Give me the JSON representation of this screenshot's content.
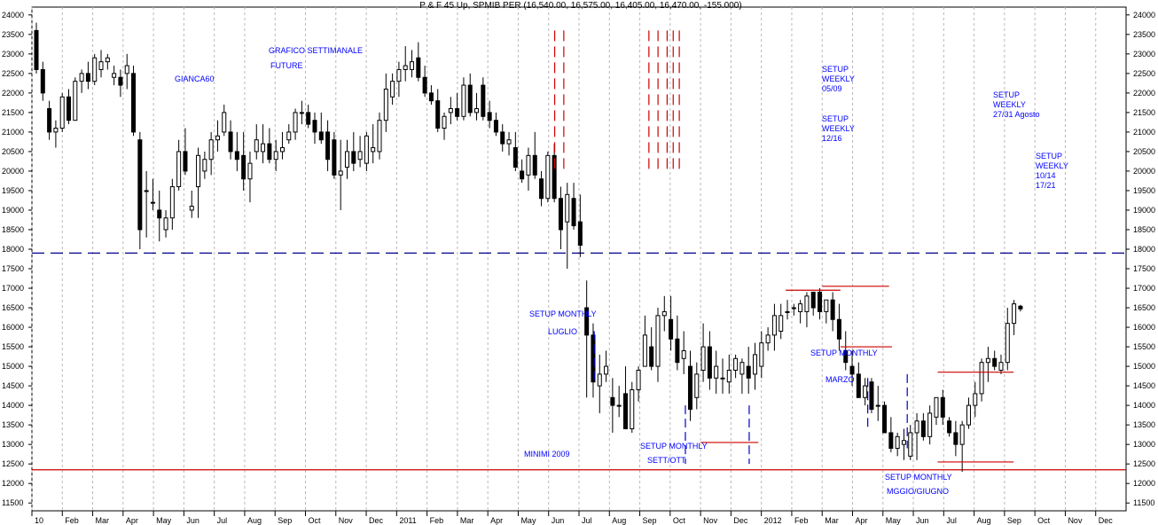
{
  "chart_data": {
    "type": "candlestick",
    "title": "P & F 45 Up, SPMIB PER (16,540.00, 16,575.00, 16,405.00, 16,470.00, -155.000)",
    "ylim": [
      11300,
      24200
    ],
    "yticks": [
      11500,
      12000,
      12500,
      13000,
      13500,
      14000,
      14500,
      15000,
      15500,
      16000,
      16500,
      17000,
      17500,
      18000,
      18500,
      19000,
      19500,
      20000,
      20500,
      21000,
      21500,
      22000,
      22500,
      23000,
      23500,
      24000
    ],
    "xticks": [
      "10",
      "Feb",
      "Mar",
      "Apr",
      "May",
      "Jun",
      "Jul",
      "Aug",
      "Sep",
      "Oct",
      "Nov",
      "Dec",
      "2011",
      "Feb",
      "Mar",
      "Apr",
      "May",
      "Jun",
      "Jul",
      "Aug",
      "Sep",
      "Oct",
      "Nov",
      "Dec",
      "2012",
      "Feb",
      "Mar",
      "Apr",
      "May",
      "Jun",
      "Jul",
      "Aug",
      "Sep",
      "Oct",
      "Nov",
      "Dec"
    ],
    "horizontal_levels": [
      {
        "value": 17900,
        "style": "dashed",
        "color": "#00008b"
      },
      {
        "value": 12350,
        "style": "solid",
        "color": "#cc0000"
      }
    ],
    "candles": [
      [
        23600,
        23800,
        22500,
        22600
      ],
      [
        22600,
        22800,
        21800,
        22000
      ],
      [
        21600,
        21800,
        20800,
        21000
      ],
      [
        21000,
        21300,
        20600,
        21100
      ],
      [
        21100,
        22000,
        21000,
        21900
      ],
      [
        21900,
        22100,
        21200,
        21300
      ],
      [
        21300,
        22400,
        21300,
        22300
      ],
      [
        22300,
        22600,
        22000,
        22500
      ],
      [
        22500,
        22800,
        22100,
        22300
      ],
      [
        22300,
        23000,
        22200,
        22900
      ],
      [
        22600,
        23100,
        22400,
        22800
      ],
      [
        22800,
        23000,
        22600,
        22900
      ],
      [
        22400,
        22700,
        22200,
        22500
      ],
      [
        22400,
        22600,
        21900,
        22200
      ],
      [
        22500,
        23000,
        22100,
        22700
      ],
      [
        22500,
        22700,
        20900,
        21000
      ],
      [
        20800,
        21000,
        18000,
        18500
      ],
      [
        19500,
        20000,
        18300,
        19500
      ],
      [
        19200,
        19800,
        19000,
        19200
      ],
      [
        19000,
        19500,
        18200,
        18800
      ],
      [
        18500,
        19000,
        18300,
        18800
      ],
      [
        18800,
        19800,
        18500,
        19600
      ],
      [
        19600,
        20800,
        19500,
        20500
      ],
      [
        20500,
        21100,
        19900,
        20000
      ],
      [
        19000,
        19500,
        18800,
        19100
      ],
      [
        19600,
        20600,
        18800,
        20400
      ],
      [
        20000,
        20500,
        19800,
        20300
      ],
      [
        20300,
        21000,
        19900,
        20800
      ],
      [
        20800,
        21300,
        20500,
        20900
      ],
      [
        21000,
        21700,
        20900,
        21500
      ],
      [
        21000,
        21300,
        20300,
        20500
      ],
      [
        20500,
        21000,
        20000,
        20300
      ],
      [
        20400,
        21000,
        19500,
        19800
      ],
      [
        19800,
        20500,
        19200,
        20200
      ],
      [
        20500,
        21200,
        20300,
        20800
      ],
      [
        20500,
        21200,
        20200,
        20700
      ],
      [
        20700,
        21100,
        20200,
        20300
      ],
      [
        20300,
        20800,
        20000,
        20500
      ],
      [
        20500,
        21000,
        20300,
        20600
      ],
      [
        20800,
        21200,
        20700,
        21000
      ],
      [
        21000,
        21600,
        20800,
        21500
      ],
      [
        21500,
        21800,
        21200,
        21500
      ],
      [
        21500,
        21700,
        21100,
        21200
      ],
      [
        21300,
        21500,
        20700,
        21000
      ],
      [
        21000,
        21500,
        20700,
        20800
      ],
      [
        21000,
        21300,
        20000,
        20300
      ],
      [
        20800,
        21000,
        19800,
        19900
      ],
      [
        19900,
        20800,
        19000,
        20000
      ],
      [
        20100,
        20800,
        19800,
        20500
      ],
      [
        20500,
        21000,
        20000,
        20200
      ],
      [
        20300,
        20900,
        20100,
        20500
      ],
      [
        20200,
        21000,
        20000,
        20900
      ],
      [
        20500,
        21200,
        20200,
        20600
      ],
      [
        20500,
        21500,
        20300,
        21300
      ],
      [
        21300,
        22500,
        21000,
        22100
      ],
      [
        21900,
        22500,
        21700,
        22300
      ],
      [
        22300,
        22800,
        21900,
        22600
      ],
      [
        22600,
        23200,
        22300,
        22700
      ],
      [
        22600,
        23100,
        22400,
        22800
      ],
      [
        22900,
        23300,
        22300,
        22400
      ],
      [
        22400,
        22700,
        21900,
        22000
      ],
      [
        22000,
        22200,
        21700,
        21800
      ],
      [
        21800,
        22100,
        21000,
        21100
      ],
      [
        21100,
        21500,
        20800,
        21400
      ],
      [
        21500,
        21900,
        21200,
        21600
      ],
      [
        21600,
        22000,
        21300,
        21400
      ],
      [
        21400,
        22400,
        21300,
        22200
      ],
      [
        22200,
        22500,
        21400,
        21500
      ],
      [
        21500,
        22000,
        21300,
        21600
      ],
      [
        22200,
        22400,
        21300,
        21400
      ],
      [
        21500,
        21800,
        21100,
        21300
      ],
      [
        21300,
        21500,
        20900,
        21000
      ],
      [
        21000,
        21200,
        20500,
        20700
      ],
      [
        20700,
        21000,
        20400,
        20800
      ],
      [
        20600,
        21000,
        20000,
        20100
      ],
      [
        20000,
        20300,
        19700,
        19800
      ],
      [
        19900,
        20600,
        19500,
        20400
      ],
      [
        20400,
        21000,
        19800,
        19900
      ],
      [
        19800,
        20000,
        19100,
        19300
      ],
      [
        19300,
        20500,
        19200,
        20400
      ],
      [
        20400,
        20700,
        19200,
        19300
      ],
      [
        19300,
        19600,
        18000,
        18500
      ],
      [
        18700,
        19700,
        17500,
        19400
      ],
      [
        19300,
        19700,
        18500,
        18600
      ],
      [
        18700,
        19400,
        17800,
        18100
      ],
      [
        16500,
        17200,
        14200,
        15800
      ],
      [
        15800,
        16100,
        14200,
        14600
      ],
      [
        14500,
        15300,
        13800,
        14800
      ],
      [
        14800,
        15400,
        14600,
        15000
      ],
      [
        14200,
        14700,
        13300,
        14000
      ],
      [
        14000,
        14500,
        13700,
        14000
      ],
      [
        14300,
        15000,
        13400,
        13400
      ],
      [
        13400,
        14600,
        13300,
        14400
      ],
      [
        14400,
        15000,
        14100,
        14900
      ],
      [
        15000,
        16300,
        15000,
        15800
      ],
      [
        15500,
        16000,
        14900,
        15000
      ],
      [
        15000,
        16500,
        14600,
        16300
      ],
      [
        16300,
        16800,
        15900,
        16400
      ],
      [
        16200,
        16800,
        15400,
        15700
      ],
      [
        15700,
        16300,
        14900,
        15100
      ],
      [
        15200,
        15900,
        14800,
        15400
      ],
      [
        15000,
        15400,
        13600,
        13900
      ],
      [
        14200,
        15100,
        13900,
        14800
      ],
      [
        14900,
        16100,
        14600,
        15500
      ],
      [
        15500,
        15900,
        14400,
        14700
      ],
      [
        14700,
        15400,
        14300,
        15000
      ],
      [
        14700,
        15200,
        14300,
        14700
      ],
      [
        14600,
        15300,
        14300,
        14900
      ],
      [
        14900,
        15300,
        14700,
        15200
      ],
      [
        14800,
        15200,
        14300,
        15100
      ],
      [
        15000,
        15500,
        14300,
        14700
      ],
      [
        14800,
        15600,
        14400,
        15300
      ],
      [
        15000,
        15900,
        14700,
        15600
      ],
      [
        15600,
        16000,
        15400,
        15800
      ],
      [
        15800,
        16600,
        15400,
        16300
      ],
      [
        15900,
        16600,
        15700,
        16300
      ],
      [
        16400,
        16700,
        16200,
        16400
      ],
      [
        16500,
        16600,
        16300,
        16500
      ],
      [
        16400,
        16700,
        16100,
        16600
      ],
      [
        16400,
        16900,
        16000,
        16800
      ],
      [
        16900,
        16900,
        16300,
        16500
      ],
      [
        16900,
        17000,
        16200,
        16400
      ],
      [
        16400,
        16700,
        16100,
        16700
      ],
      [
        16700,
        16900,
        15900,
        16200
      ],
      [
        16200,
        16600,
        15400,
        15700
      ],
      [
        15400,
        15900,
        14900,
        15100
      ],
      [
        15000,
        15400,
        14500,
        14800
      ],
      [
        14800,
        15100,
        14200,
        14200
      ],
      [
        14200,
        14700,
        14000,
        14500
      ],
      [
        14600,
        14700,
        13800,
        13900
      ],
      [
        14000,
        14500,
        13600,
        14000
      ],
      [
        14000,
        14100,
        13300,
        13300
      ],
      [
        13300,
        13700,
        12800,
        12900
      ],
      [
        12900,
        13300,
        12700,
        13200
      ],
      [
        13000,
        13400,
        12600,
        13100
      ],
      [
        12700,
        13500,
        12600,
        13300
      ],
      [
        13300,
        13800,
        12600,
        13600
      ],
      [
        13600,
        13800,
        13100,
        13200
      ],
      [
        13200,
        14000,
        13000,
        13800
      ],
      [
        13700,
        14200,
        13500,
        14200
      ],
      [
        14200,
        14400,
        13500,
        13700
      ],
      [
        13600,
        13700,
        13200,
        13300
      ],
      [
        13300,
        13600,
        12700,
        13000
      ],
      [
        13000,
        13600,
        12300,
        13500
      ],
      [
        13500,
        14200,
        13400,
        14000
      ],
      [
        14000,
        14600,
        13700,
        14300
      ],
      [
        14300,
        15200,
        14100,
        15100
      ],
      [
        15100,
        15500,
        14600,
        15200
      ],
      [
        15200,
        15400,
        14900,
        15000
      ],
      [
        14900,
        15300,
        14800,
        15100
      ],
      [
        15100,
        16500,
        14900,
        16100
      ],
      [
        16100,
        16700,
        15800,
        16600
      ],
      [
        16540,
        16575,
        16405,
        16470
      ]
    ],
    "vertical_red_dashed_x_month": [
      17.2,
      17.5,
      20.3,
      20.6,
      20.9,
      21.1,
      21.3
    ]
  },
  "annotations": {
    "gianca": "GIANCA60",
    "grafico": "GRAFICO SETTIMANALE",
    "future": "FUTURE",
    "setup_weekly_1": "SETUP\nWEEKLY\n05/09",
    "setup_weekly_2": "SETUP\nWEEKLY\n12/16",
    "setup_weekly_3": "SETUP\nWEEKLY\n27/31 Agosto",
    "setup_weekly_4": "SETUP\nWEEKLY\n10/14\n17/21",
    "setup_monthly_1": "SETUP MONTHLY",
    "luglio": "LUGLIO",
    "minimi": "MINIMI 2009",
    "setup_monthly_2": "SETUP MONTHLY",
    "sett_ott": "SETT/OTT",
    "setup_monthly_3": "SETUP MONTHLY",
    "marzo": "MARZO",
    "setup_monthly_4": "SETUP MONTHLY",
    "mggio_giugno": "MGGIO/GIUGNO"
  }
}
